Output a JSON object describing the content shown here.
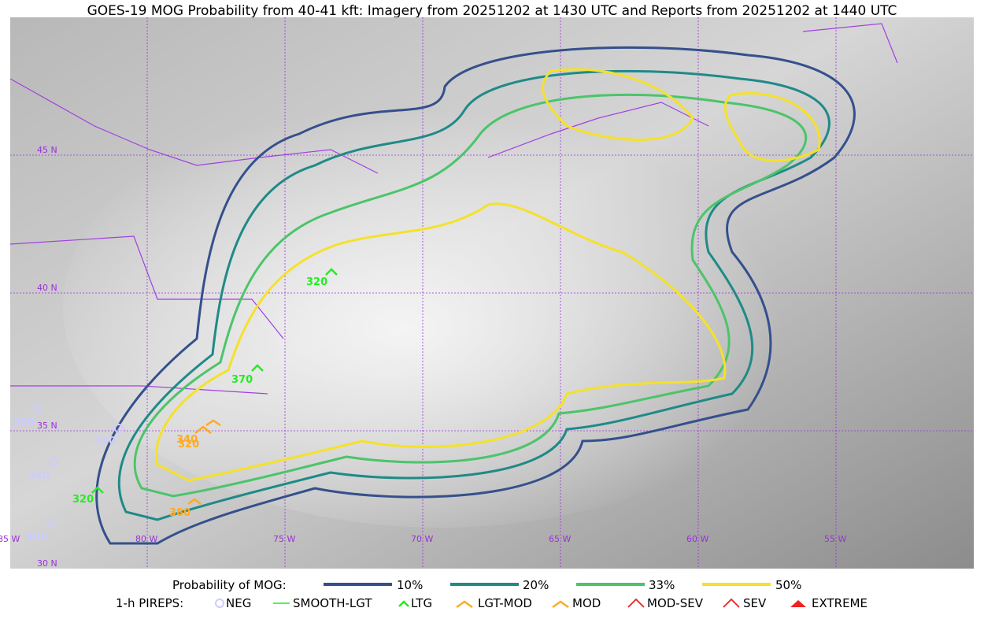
{
  "title": "GOES-19 MOG Probability from 40-41 kft: Imagery from 20251202 at 1430 UTC and Reports from 20251202 at 1440 UTC",
  "grid_labels": {
    "lat": [
      "45 N",
      "40 N",
      "35 N",
      "30 N"
    ],
    "lon": [
      "85 W",
      "80 W",
      "75 W",
      "70 W",
      "65 W",
      "60 W",
      "55 W"
    ]
  },
  "reports": [
    "300",
    "340",
    "340",
    "400",
    "320",
    "320",
    "370",
    "340",
    "320",
    "380"
  ],
  "legend": {
    "probability_title": "Probability of MOG:",
    "probability_levels": [
      "10%",
      "20%",
      "33%",
      "50%"
    ],
    "pireps_title": "1-h PIREPS:",
    "pirep_types": [
      "NEG",
      "SMOOTH-LGT",
      "LTG",
      "LGT-MOD",
      "MOD",
      "MOD-SEV",
      "SEV",
      "EXTREME"
    ]
  }
}
